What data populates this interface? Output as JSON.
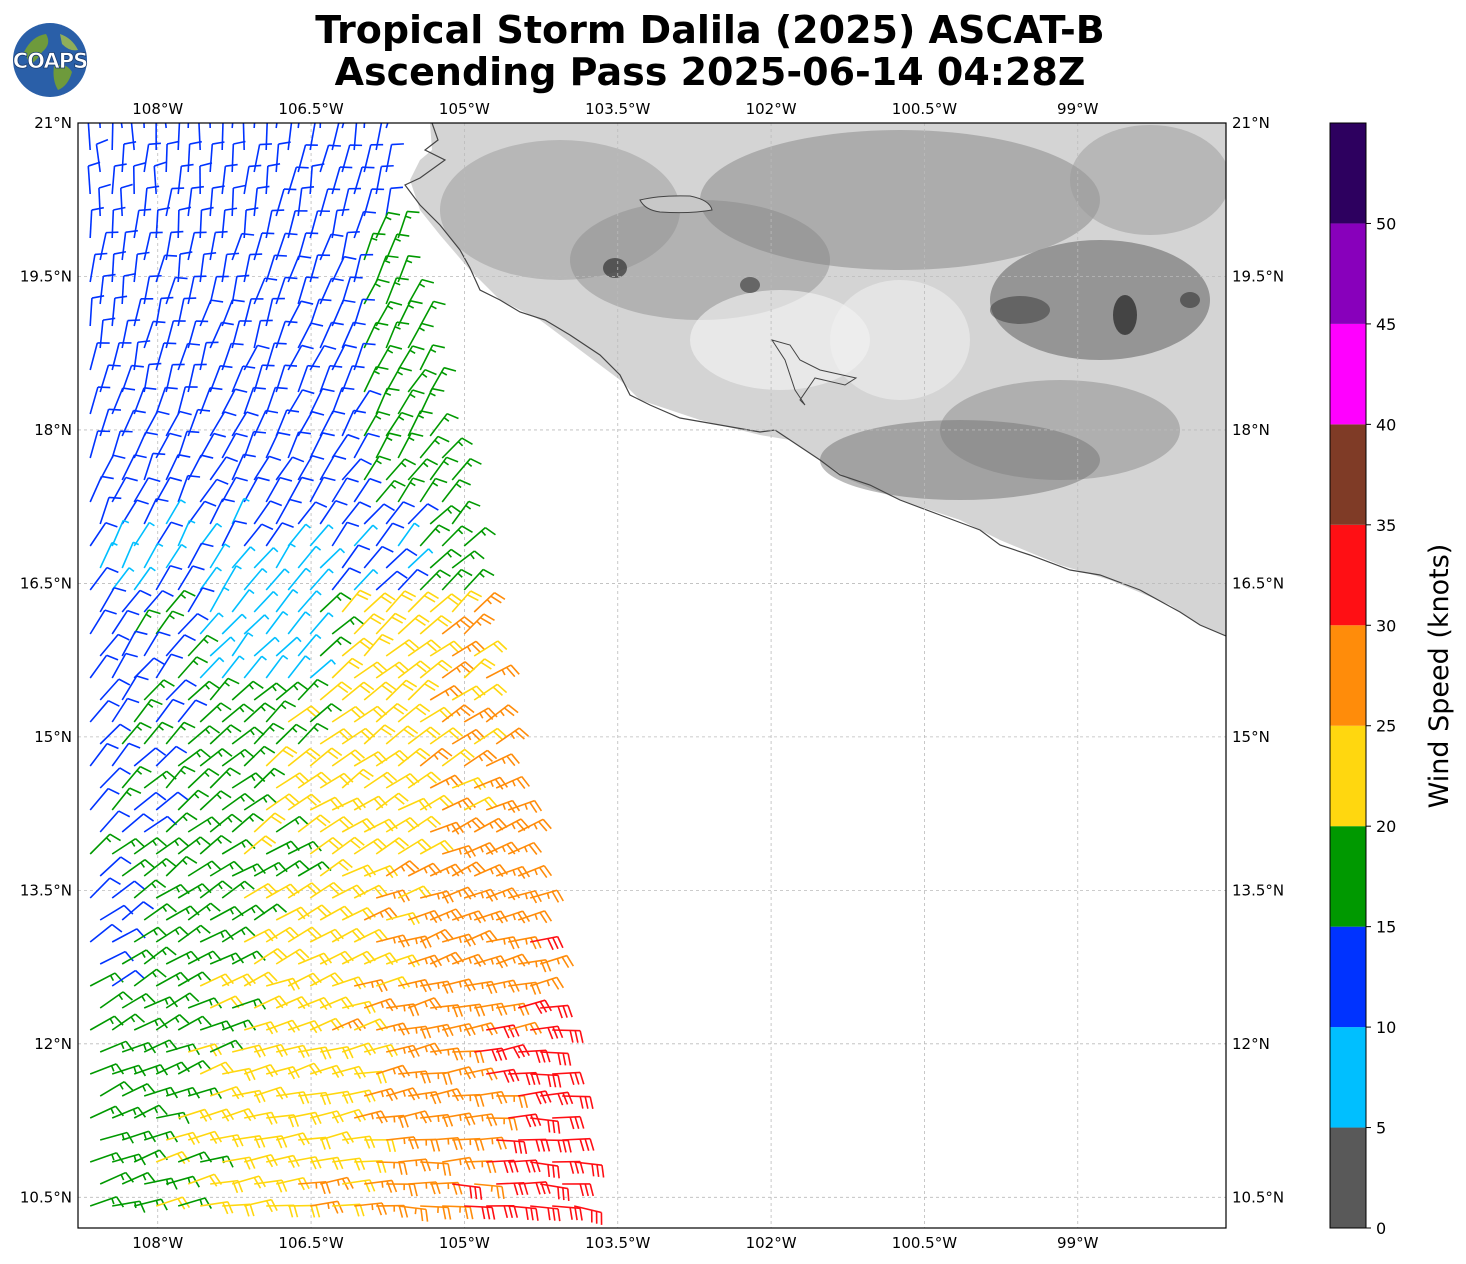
{
  "title_line1": "Tropical Storm Dalila (2025) ASCAT-B",
  "title_line2": "Ascending Pass 2025-06-14 04:28Z",
  "logo_text": "COAPS",
  "map": {
    "lon_ticks": [
      {
        "lon": -108,
        "label": "108°W"
      },
      {
        "lon": -106.5,
        "label": "106.5°W"
      },
      {
        "lon": -105,
        "label": "105°W"
      },
      {
        "lon": -103.5,
        "label": "103.5°W"
      },
      {
        "lon": -102,
        "label": "102°W"
      },
      {
        "lon": -100.5,
        "label": "100.5°W"
      },
      {
        "lon": -99,
        "label": "99°W"
      }
    ],
    "lat_ticks": [
      {
        "lat": 21,
        "label": "21°N"
      },
      {
        "lat": 19.5,
        "label": "19.5°N"
      },
      {
        "lat": 18,
        "label": "18°N"
      },
      {
        "lat": 16.5,
        "label": "16.5°N"
      },
      {
        "lat": 15,
        "label": "15°N"
      },
      {
        "lat": 13.5,
        "label": "13.5°N"
      },
      {
        "lat": 12,
        "label": "12°N"
      },
      {
        "lat": 10.5,
        "label": "10.5°N"
      }
    ],
    "lon_range": [
      -108.78,
      -97.55
    ],
    "lat_range": [
      10.2,
      21.0
    ]
  },
  "colorbar": {
    "label": "Wind Speed (knots)",
    "ticks": [
      "0",
      "5",
      "10",
      "15",
      "20",
      "25",
      "30",
      "35",
      "40",
      "45",
      "50"
    ],
    "colors": [
      "#595959",
      "#00bfff",
      "#0033ff",
      "#009900",
      "#ffd70f",
      "#ff8c0a",
      "#ff0f14",
      "#7f3b26",
      "#ff00ff",
      "#8800bb",
      "#2d005f"
    ]
  }
}
